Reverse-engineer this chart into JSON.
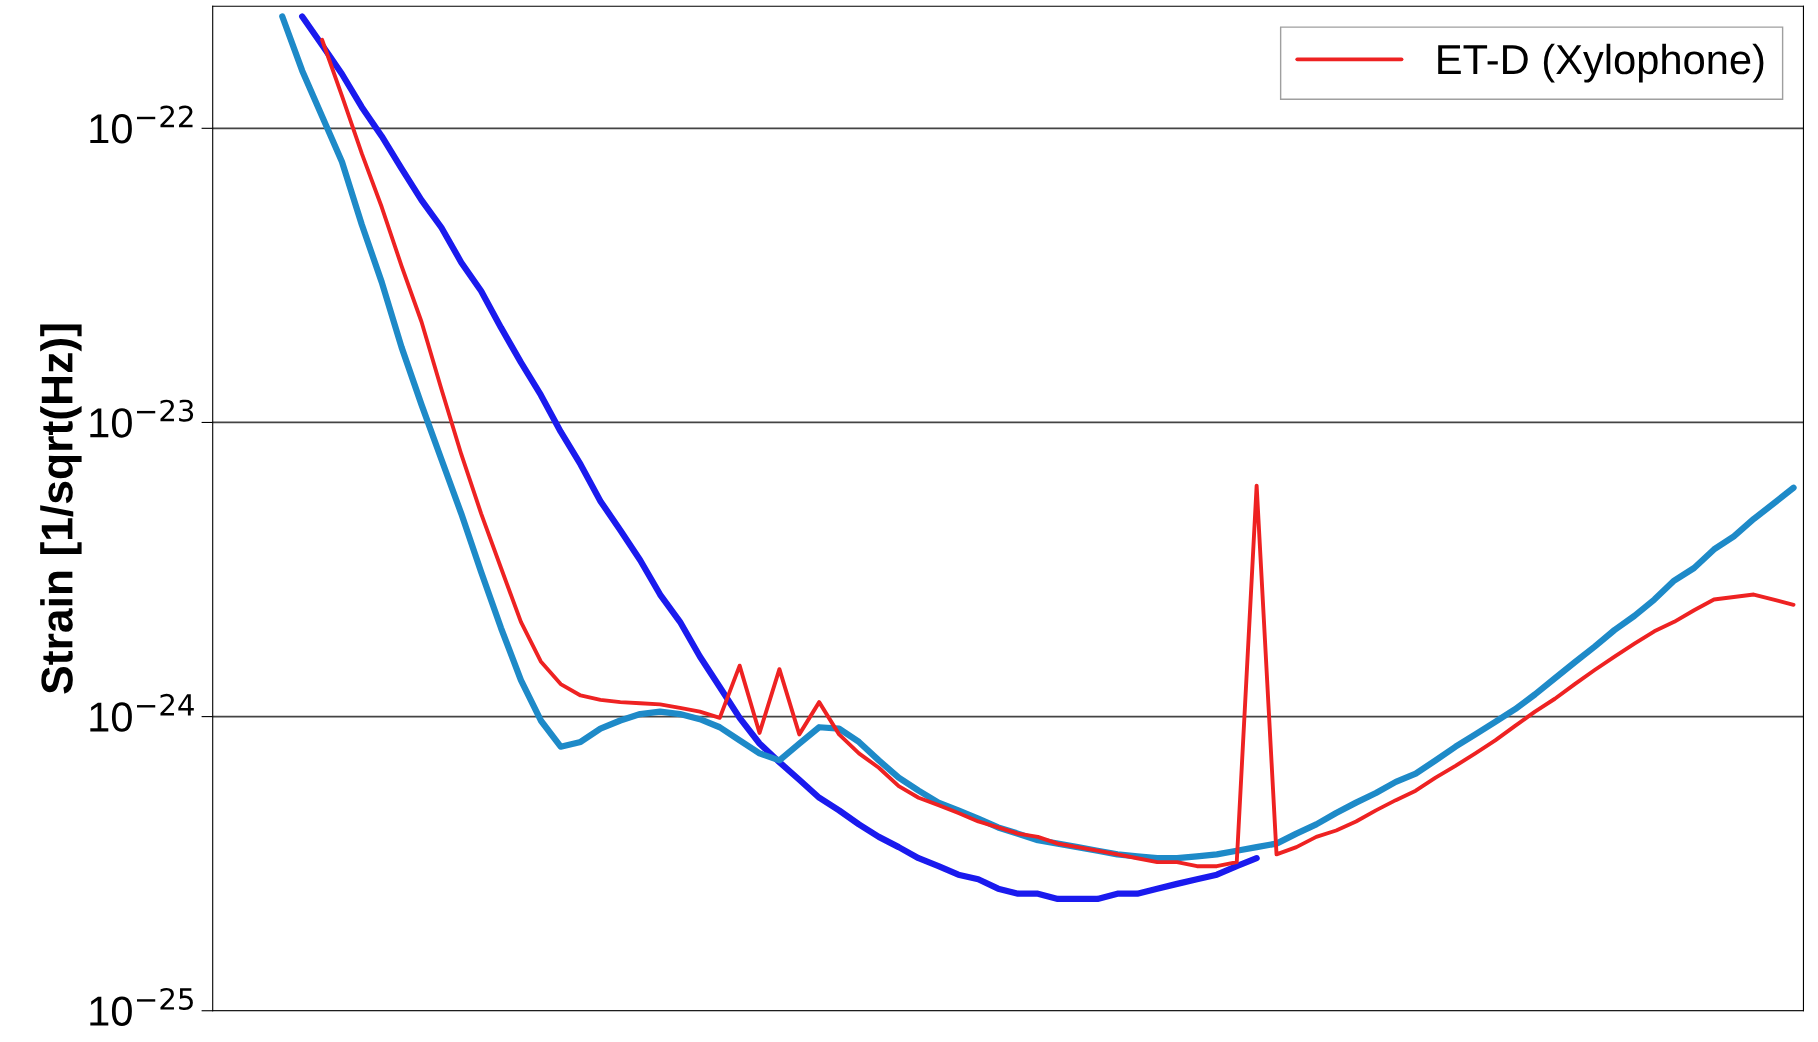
{
  "chart_data": {
    "type": "line",
    "ylabel": "Strain [1/sqrt(Hz)]",
    "log": "y",
    "grid": "y",
    "legend": "top right",
    "categories": [
      null,
      null,
      null,
      null,
      null,
      null,
      null,
      null,
      null,
      null,
      null,
      null,
      null,
      null,
      null,
      null,
      null,
      null,
      null,
      null,
      null,
      null,
      null,
      null,
      null,
      null,
      null,
      null,
      null,
      null,
      null,
      null,
      null,
      null,
      null,
      null,
      null,
      null,
      null,
      null,
      null,
      null,
      null,
      null,
      null,
      null,
      null,
      null,
      null,
      null,
      null,
      null,
      null,
      null,
      null,
      null,
      null,
      null,
      null,
      null,
      null,
      null,
      null,
      null,
      null,
      null,
      null,
      null,
      null,
      null,
      null,
      null,
      null,
      null,
      null,
      null,
      null,
      null,
      null,
      null
    ],
    "ylim": [
      1e-25,
      2.6e-22
    ],
    "yticks": [
      {
        "value": 1e-25,
        "label": "10$^{−25}$"
      },
      {
        "value": 1e-24,
        "label": "10$^{−24}$"
      },
      {
        "value": 1e-23,
        "label": "10$^{−23}$"
      },
      {
        "value": 1e-22,
        "label": "10$^{−22}$"
      }
    ],
    "tick_labels": "y",
    "series": [
      {
        "color": "#1a1aee",
        "values": [
          null,
          null,
          null,
          null,
          2.4e-22,
          1.92e-22,
          1.53e-22,
          1.18e-22,
          9.4e-23,
          7.3e-23,
          5.7e-23,
          4.6e-23,
          3.5e-23,
          2.8e-23,
          2.1e-23,
          1.6e-23,
          1.24e-23,
          9.3e-24,
          7.2e-24,
          5.4e-24,
          4.3e-24,
          3.4e-24,
          2.6e-24,
          2.1e-24,
          1.6e-24,
          1.26e-24,
          9.9e-25,
          8.1e-25,
          7e-25,
          6.1e-25,
          5.3e-25,
          4.8e-25,
          4.3e-25,
          3.9e-25,
          3.6e-25,
          3.3e-25,
          3.1e-25,
          2.9e-25,
          2.8e-25,
          2.6e-25,
          2.5e-25,
          2.5e-25,
          2.4e-25,
          2.4e-25,
          2.4e-25,
          2.5e-25,
          2.5e-25,
          2.6e-25,
          2.7e-25,
          2.8e-25,
          2.9e-25,
          3.1e-25,
          3.3e-25,
          null,
          null,
          null,
          null,
          null,
          null,
          null,
          null,
          null,
          null,
          null,
          null,
          null,
          null,
          null,
          null,
          null,
          null,
          null,
          null,
          null,
          null,
          null,
          null,
          null,
          null,
          null
        ]
      },
      {
        "color": "#1e8ac8",
        "values": [
          null,
          null,
          null,
          2.4e-22,
          1.57e-22,
          1.1e-22,
          7.7e-23,
          4.7e-23,
          3e-23,
          1.8e-23,
          1.15e-23,
          7.5e-24,
          4.9e-24,
          3.1e-24,
          2e-24,
          1.33e-24,
          9.7e-25,
          7.9e-25,
          8.2e-25,
          9.1e-25,
          9.7e-25,
          1.02e-24,
          1.04e-24,
          1.02e-24,
          9.8e-25,
          9.2e-25,
          8.3e-25,
          7.5e-25,
          7.1e-25,
          8.1e-25,
          9.2e-25,
          9.1e-25,
          8.2e-25,
          7.1e-25,
          6.2e-25,
          5.6e-25,
          5.1e-25,
          4.8e-25,
          4.5e-25,
          4.2e-25,
          4e-25,
          3.8e-25,
          3.7e-25,
          3.6e-25,
          3.5e-25,
          3.4e-25,
          3.35e-25,
          3.3e-25,
          3.3e-25,
          3.35e-25,
          3.4e-25,
          3.5e-25,
          3.6e-25,
          3.7e-25,
          4e-25,
          4.3e-25,
          4.7e-25,
          5.1e-25,
          5.5e-25,
          6e-25,
          6.4e-25,
          7.1e-25,
          7.9e-25,
          8.7e-25,
          9.6e-25,
          1.06e-24,
          1.19e-24,
          1.35e-24,
          1.53e-24,
          1.73e-24,
          1.97e-24,
          2.2e-24,
          2.5e-24,
          2.9e-24,
          3.2e-24,
          3.7e-24,
          4.1e-24,
          4.7e-24,
          5.3e-24,
          6e-24
        ]
      },
      {
        "name": "ET-D (Xylophone)",
        "color": "#ee2222",
        "values": [
          null,
          null,
          null,
          null,
          null,
          2e-22,
          1.29e-22,
          8.2e-23,
          5.4e-23,
          3.4e-23,
          2.2e-23,
          1.3e-23,
          7.8e-24,
          4.9e-24,
          3.2e-24,
          2.1e-24,
          1.54e-24,
          1.29e-24,
          1.18e-24,
          1.14e-24,
          1.12e-24,
          1.11e-24,
          1.1e-24,
          1.07e-24,
          1.04e-24,
          9.9e-25,
          1.49e-24,
          8.8e-25,
          1.45e-24,
          8.7e-25,
          1.12e-24,
          8.7e-25,
          7.5e-25,
          6.7e-25,
          5.8e-25,
          5.3e-25,
          5e-25,
          4.7e-25,
          4.4e-25,
          4.2e-25,
          4e-25,
          3.9e-25,
          3.7e-25,
          3.6e-25,
          3.5e-25,
          3.4e-25,
          3.3e-25,
          3.2e-25,
          3.2e-25,
          3.1e-25,
          3.1e-25,
          3.2e-25,
          6.1e-24,
          3.4e-25,
          3.6e-25,
          3.9e-25,
          4.1e-25,
          4.4e-25,
          4.8e-25,
          5.2e-25,
          5.6e-25,
          6.2e-25,
          6.8e-25,
          7.5e-25,
          8.3e-25,
          9.3e-25,
          1.04e-24,
          1.15e-24,
          1.29e-24,
          1.44e-24,
          1.6e-24,
          1.77e-24,
          1.95e-24,
          2.1e-24,
          2.3e-24,
          2.5e-24,
          2.55e-24,
          2.6e-24,
          2.5e-24,
          2.4e-24
        ]
      }
    ]
  }
}
